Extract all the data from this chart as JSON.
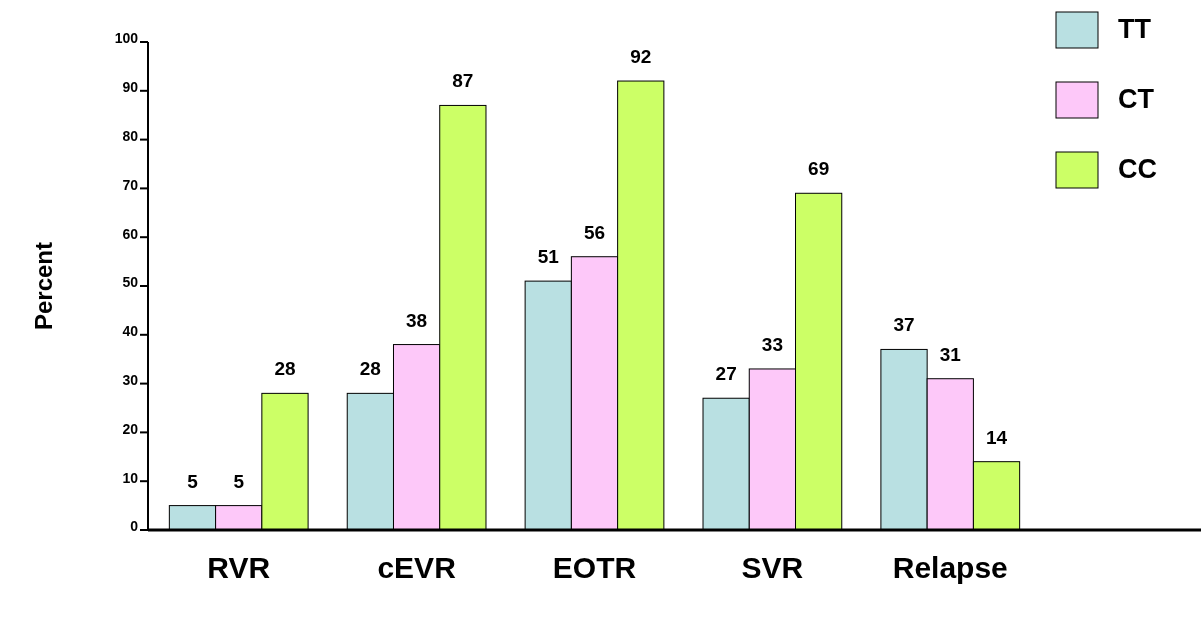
{
  "chart_data": {
    "type": "bar",
    "ylabel": "Percent",
    "categories": [
      "RVR",
      "cEVR",
      "EOTR",
      "SVR",
      "Relapse"
    ],
    "series": [
      {
        "name": "TT",
        "color": "#b9e0e2",
        "values": [
          5,
          28,
          51,
          27,
          37
        ]
      },
      {
        "name": "CT",
        "color": "#fdc8f9",
        "values": [
          5,
          38,
          56,
          33,
          31
        ]
      },
      {
        "name": "CC",
        "color": "#ccff66",
        "values": [
          28,
          87,
          92,
          69,
          14
        ]
      }
    ],
    "ylim": [
      0,
      100
    ],
    "yticks": [
      0,
      10,
      20,
      30,
      40,
      50,
      60,
      70,
      80,
      90,
      100
    ],
    "data_labels": true,
    "legend": "top right",
    "grid": false
  }
}
